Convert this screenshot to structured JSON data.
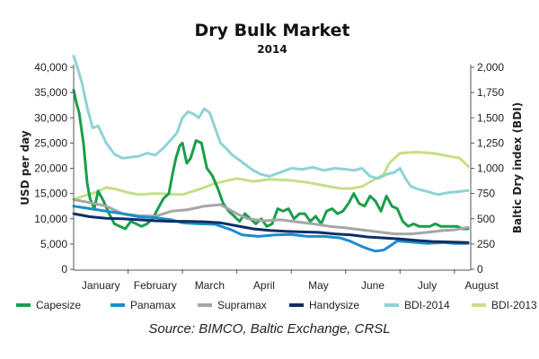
{
  "chart_data": {
    "type": "line",
    "title": "Dry Bulk Market",
    "subtitle": "2014",
    "ylabel": "USD per day",
    "y2label": "Baltic Dry index (BDI)",
    "source": "Source: BIMCO, Baltic Exchange, CRSL",
    "ylim": [
      0,
      40000
    ],
    "y2lim": [
      0,
      2000
    ],
    "xlim": [
      0,
      7.3
    ],
    "yticks": [
      "0",
      "5,000",
      "10,000",
      "15,000",
      "20,000",
      "25,000",
      "30,000",
      "35,000",
      "40,000"
    ],
    "y2ticks": [
      "0",
      "250",
      "500",
      "750",
      "1,000",
      "1,250",
      "1,500",
      "1,750",
      "2,000"
    ],
    "categories": [
      "January",
      "February",
      "March",
      "April",
      "May",
      "June",
      "July",
      "August"
    ],
    "grid": false,
    "legend_position": "bottom",
    "series": [
      {
        "name": "BDI-2013",
        "axis": "right",
        "color": "#c5df85",
        "x": [
          0,
          0.2,
          0.4,
          0.6,
          0.8,
          1.0,
          1.2,
          1.5,
          2.0,
          2.3,
          2.6,
          3.0,
          3.3,
          3.6,
          4.0,
          4.3,
          4.6,
          4.9,
          5.1,
          5.3,
          5.5,
          5.7,
          5.8,
          6.0,
          6.3,
          6.6,
          6.9,
          7.1,
          7.25
        ],
        "y": [
          690,
          730,
          760,
          810,
          790,
          760,
          740,
          750,
          740,
          790,
          850,
          900,
          870,
          890,
          880,
          860,
          830,
          800,
          800,
          820,
          880,
          940,
          1050,
          1150,
          1160,
          1150,
          1120,
          1100,
          1020
        ]
      },
      {
        "name": "BDI-2014",
        "axis": "right",
        "color": "#8ed3d6",
        "x": [
          0,
          0.08,
          0.15,
          0.25,
          0.35,
          0.45,
          0.6,
          0.75,
          0.9,
          1.05,
          1.2,
          1.35,
          1.5,
          1.65,
          1.8,
          1.9,
          2.0,
          2.1,
          2.2,
          2.3,
          2.4,
          2.5,
          2.6,
          2.7,
          2.8,
          2.9,
          3.0,
          3.15,
          3.3,
          3.45,
          3.6,
          3.8,
          4.0,
          4.2,
          4.4,
          4.6,
          4.8,
          5.0,
          5.15,
          5.3,
          5.45,
          5.6,
          5.75,
          5.9,
          6.0,
          6.1,
          6.2,
          6.35,
          6.5,
          6.7,
          6.9,
          7.1,
          7.25
        ],
        "y": [
          2110,
          1980,
          1850,
          1600,
          1400,
          1420,
          1250,
          1140,
          1100,
          1110,
          1120,
          1150,
          1130,
          1200,
          1290,
          1350,
          1500,
          1560,
          1540,
          1500,
          1590,
          1550,
          1400,
          1250,
          1200,
          1140,
          1100,
          1040,
          980,
          940,
          920,
          960,
          1000,
          990,
          1010,
          980,
          1000,
          990,
          980,
          1000,
          920,
          900,
          940,
          960,
          1000,
          900,
          820,
          790,
          770,
          740,
          760,
          770,
          780
        ]
      },
      {
        "name": "Capesize",
        "axis": "left",
        "color": "#1b9e4b",
        "x": [
          0,
          0.05,
          0.1,
          0.18,
          0.25,
          0.3,
          0.38,
          0.45,
          0.55,
          0.65,
          0.75,
          0.85,
          0.95,
          1.05,
          1.15,
          1.25,
          1.35,
          1.45,
          1.55,
          1.65,
          1.75,
          1.82,
          1.88,
          1.95,
          2.0,
          2.08,
          2.15,
          2.25,
          2.35,
          2.45,
          2.55,
          2.65,
          2.75,
          2.85,
          2.95,
          3.05,
          3.15,
          3.25,
          3.35,
          3.45,
          3.55,
          3.65,
          3.75,
          3.85,
          3.95,
          4.05,
          4.15,
          4.25,
          4.35,
          4.45,
          4.55,
          4.65,
          4.75,
          4.85,
          4.95,
          5.05,
          5.15,
          5.25,
          5.35,
          5.45,
          5.55,
          5.65,
          5.75,
          5.85,
          5.95,
          6.05,
          6.15,
          6.25,
          6.35,
          6.45,
          6.55,
          6.65,
          6.75,
          6.85,
          6.95,
          7.05,
          7.15,
          7.25
        ],
        "y": [
          35500,
          33000,
          31000,
          25000,
          17000,
          14000,
          12000,
          15500,
          13500,
          11000,
          9000,
          8500,
          8000,
          9500,
          9000,
          8500,
          9000,
          10000,
          12000,
          14000,
          15000,
          19000,
          22000,
          24500,
          25000,
          21000,
          22000,
          25500,
          25000,
          20000,
          18500,
          16000,
          13000,
          11500,
          10500,
          9500,
          11000,
          10000,
          9000,
          10000,
          8500,
          9000,
          12000,
          11500,
          12000,
          10000,
          11000,
          11000,
          9500,
          10500,
          9000,
          11500,
          12000,
          11000,
          11500,
          13000,
          15000,
          13000,
          12500,
          14500,
          13500,
          11500,
          14500,
          12500,
          12000,
          9500,
          8500,
          9000,
          8500,
          8500,
          8500,
          9000,
          8500,
          8500,
          8500,
          8500,
          8000,
          8000
        ]
      },
      {
        "name": "Supramax",
        "axis": "left",
        "color": "#a6a6a6",
        "x": [
          0,
          0.3,
          0.6,
          0.9,
          1.2,
          1.5,
          1.8,
          2.1,
          2.4,
          2.7,
          3.0,
          3.2,
          3.5,
          3.8,
          4.1,
          4.4,
          4.7,
          5.0,
          5.3,
          5.6,
          5.9,
          6.2,
          6.5,
          6.8,
          7.0,
          7.25
        ],
        "y": [
          13800,
          13200,
          12500,
          11000,
          10600,
          10500,
          11500,
          11800,
          12500,
          12800,
          11000,
          10000,
          9600,
          9800,
          9400,
          9000,
          8500,
          8200,
          7800,
          7400,
          7000,
          7000,
          7300,
          7700,
          7800,
          8300
        ]
      },
      {
        "name": "Panamax",
        "axis": "left",
        "color": "#1a8fc9",
        "x": [
          0,
          0.3,
          0.6,
          0.9,
          1.2,
          1.5,
          1.8,
          2.0,
          2.3,
          2.6,
          2.9,
          3.1,
          3.4,
          3.7,
          4.0,
          4.3,
          4.6,
          4.9,
          5.1,
          5.3,
          5.45,
          5.55,
          5.7,
          5.8,
          5.95,
          6.2,
          6.5,
          6.8,
          7.0,
          7.25
        ],
        "y": [
          12500,
          12000,
          11500,
          11000,
          10400,
          10200,
          9800,
          9200,
          9000,
          8900,
          7800,
          6800,
          6500,
          6800,
          6900,
          6500,
          6500,
          6200,
          5500,
          4500,
          3900,
          3600,
          3800,
          4500,
          5600,
          5400,
          5100,
          5300,
          5100,
          5100
        ]
      },
      {
        "name": "Handysize",
        "axis": "left",
        "color": "#0c2f66",
        "x": [
          0,
          0.3,
          0.6,
          0.9,
          1.2,
          1.5,
          1.8,
          2.1,
          2.4,
          2.7,
          3.0,
          3.3,
          3.6,
          3.9,
          4.2,
          4.5,
          4.8,
          5.1,
          5.4,
          5.7,
          6.0,
          6.3,
          6.6,
          6.9,
          7.25
        ],
        "y": [
          11000,
          10400,
          10100,
          10000,
          9800,
          9600,
          9500,
          9500,
          9400,
          9200,
          8600,
          8000,
          7700,
          7500,
          7400,
          7300,
          7000,
          6800,
          6400,
          6200,
          6000,
          5700,
          5500,
          5400,
          5300
        ]
      }
    ],
    "legend": [
      "Capesize",
      "Panamax",
      "Supramax",
      "Handysize",
      "BDI-2014",
      "BDI-2013"
    ]
  }
}
